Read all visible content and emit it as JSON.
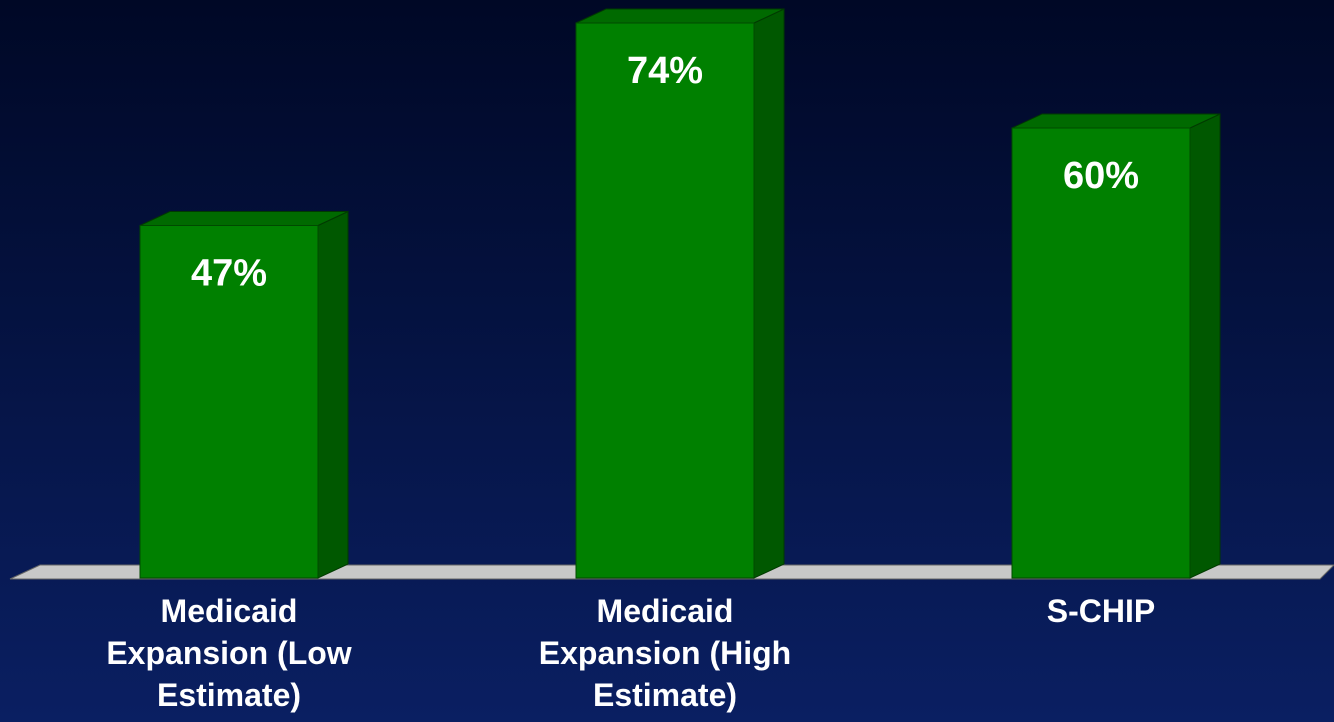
{
  "chart_data": {
    "type": "bar3d",
    "categories": [
      "Medicaid Expansion (Low Estimate)",
      "Medicaid Expansion (High Estimate)",
      "S-CHIP"
    ],
    "values": [
      47,
      74,
      60
    ],
    "value_labels": [
      "47%",
      "74%",
      "60%"
    ],
    "color": "#008000"
  }
}
